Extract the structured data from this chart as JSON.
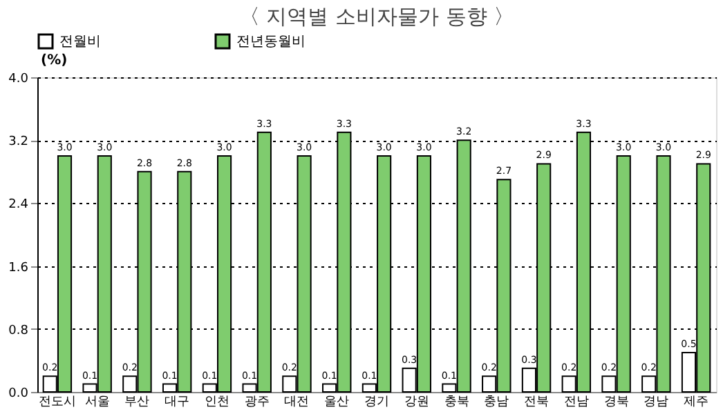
{
  "chart_data": {
    "type": "bar",
    "title": "〈 지역별 소비자물가 동향 〉",
    "ylabel": "(%)",
    "categories": [
      "전도시",
      "서울",
      "부산",
      "대구",
      "인천",
      "광주",
      "대전",
      "울산",
      "경기",
      "강원",
      "충북",
      "충남",
      "전북",
      "전남",
      "경북",
      "경남",
      "제주"
    ],
    "series": [
      {
        "name": "전월비",
        "color": "#ffffff",
        "values": [
          0.2,
          0.1,
          0.2,
          0.1,
          0.1,
          0.1,
          0.2,
          0.1,
          0.1,
          0.3,
          0.1,
          0.2,
          0.3,
          0.2,
          0.2,
          0.2,
          0.5
        ],
        "value_labels": [
          "0.2",
          "0.1",
          "0.2",
          "0.1",
          "0.1",
          "0.1",
          "0.2",
          "0.1",
          "0.1",
          "0.3",
          "0.1",
          "0.2",
          "0.3",
          "0.2",
          "0.2",
          "0.2",
          "0.5"
        ]
      },
      {
        "name": "전년동월비",
        "color": "#7fcc6e",
        "values": [
          3.0,
          3.0,
          2.8,
          2.8,
          3.0,
          3.3,
          3.0,
          3.3,
          3.0,
          3.0,
          3.2,
          2.7,
          2.9,
          3.3,
          3.0,
          3.0,
          2.9
        ],
        "value_labels": [
          "3.0",
          "3.0",
          "2.8",
          "2.8",
          "3.0",
          "3.3",
          "3.0",
          "3.3",
          "3.0",
          "3.0",
          "3.2",
          "2.7",
          "2.9",
          "3.3",
          "3.0",
          "3.0",
          "2.9"
        ]
      }
    ],
    "ylim": [
      0,
      4
    ],
    "yticks": [
      {
        "value": 0,
        "label": "0.0"
      },
      {
        "value": 0.8,
        "label": "0.8"
      },
      {
        "value": 1.6,
        "label": "1.6"
      },
      {
        "value": 2.4,
        "label": "2.4"
      },
      {
        "value": 3.2,
        "label": "3.2"
      },
      {
        "value": 4,
        "label": "4.0"
      }
    ],
    "grid": "y",
    "legend": "top"
  }
}
